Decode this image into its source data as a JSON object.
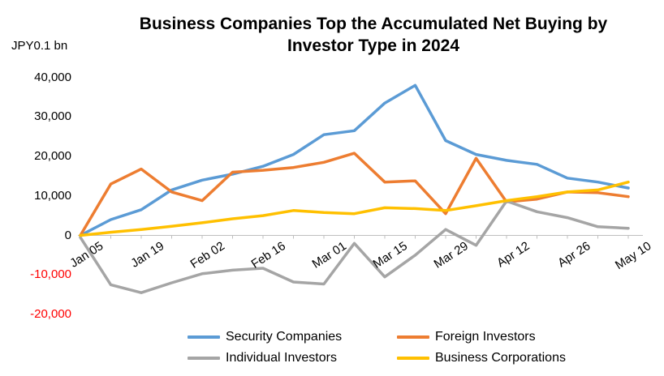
{
  "chart_data": {
    "type": "line",
    "title": "Business Companies Top the Accumulated Net Buying by Investor Type in 2024",
    "title_lines": [
      "Business Companies Top the Accumulated Net Buying by",
      "Investor Type in 2024"
    ],
    "unit_label": "JPY0.1 bn",
    "x": [
      "Jan 05",
      "Jan 12",
      "Jan 19",
      "Jan 26",
      "Feb 02",
      "Feb 09",
      "Feb 16",
      "Feb 23",
      "Mar 01",
      "Mar 08",
      "Mar 15",
      "Mar 22",
      "Mar 29",
      "Apr 05",
      "Apr 12",
      "Apr 19",
      "Apr 26",
      "May 03",
      "May 10"
    ],
    "x_label_interval": 2,
    "x_shown_labels": [
      "Jan 05",
      "Jan 19",
      "Feb 02",
      "Feb 16",
      "Mar 01",
      "Mar 15",
      "Mar 29",
      "Apr 12",
      "Apr 26",
      "May 10"
    ],
    "ylim": [
      -20000,
      40000
    ],
    "yticks": [
      40000,
      30000,
      20000,
      10000,
      0,
      -10000,
      -20000
    ],
    "tick_color": "#000000",
    "negative_tick_color": "#FF0000",
    "axis_line_color": "#BFBFBF",
    "grid": false,
    "legend_position": "bottom",
    "series": [
      {
        "name": "Security Companies",
        "color": "#5B9BD5",
        "values": [
          0,
          4000,
          6500,
          11500,
          14000,
          15500,
          17500,
          20500,
          25500,
          26500,
          33500,
          38000,
          24000,
          20500,
          19000,
          18000,
          14500,
          13500,
          12000
        ]
      },
      {
        "name": "Foreign Investors",
        "color": "#ED7D31",
        "values": [
          0,
          13000,
          16800,
          11000,
          8800,
          16000,
          16500,
          17200,
          18500,
          20800,
          13500,
          13800,
          5500,
          19500,
          8500,
          9200,
          11000,
          10800,
          9800
        ]
      },
      {
        "name": "Individual Investors",
        "color": "#A5A5A5",
        "values": [
          -500,
          -12500,
          -14500,
          -12000,
          -9700,
          -8800,
          -8300,
          -11800,
          -12300,
          -2000,
          -10500,
          -5000,
          1500,
          -2500,
          8700,
          6000,
          4500,
          2200,
          1800
        ]
      },
      {
        "name": "Business Corporations",
        "color": "#FFC000",
        "values": [
          0,
          800,
          1500,
          2300,
          3200,
          4200,
          5000,
          6300,
          5800,
          5500,
          7000,
          6800,
          6300,
          7500,
          8800,
          9800,
          11000,
          11500,
          13500
        ]
      }
    ]
  }
}
